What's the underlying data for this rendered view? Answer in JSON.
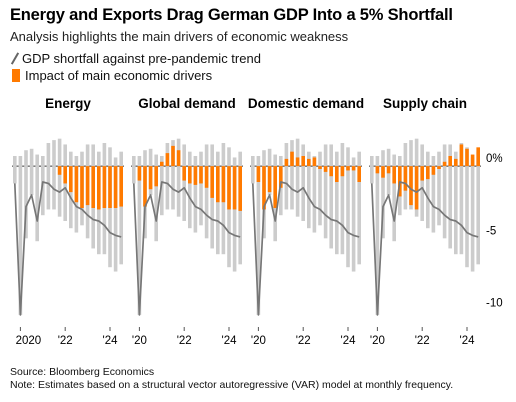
{
  "header": {
    "title": "Energy and Exports Drag German GDP Into a 5% Shortfall",
    "subtitle": "Analysis highlights the main drivers of economic weakness"
  },
  "legend": {
    "line_label": "GDP shortfall against pre-pandemic trend",
    "bar_label": "Impact of main economic drivers"
  },
  "footer": {
    "source": "Source: Bloomberg Economics",
    "note": "Note: Estimates based on a structural vector autoregressive (VAR) model at monthly frequency."
  },
  "colors": {
    "driver": "#ff7a00",
    "other": "#cccccc",
    "line": "#777777",
    "zero": "#333333"
  },
  "chart_data": {
    "type": "bar",
    "ylim": [
      -11,
      2.5
    ],
    "y_ticks": [
      {
        "value": 0,
        "label": "0%"
      },
      {
        "value": -5,
        "label": "-5"
      },
      {
        "value": -10,
        "label": "-10"
      }
    ],
    "x_ticks": [
      "2020",
      "'22",
      "'24"
    ],
    "panel_x_ticks": [
      "'20",
      "'22",
      "'24"
    ],
    "x": [
      "2019-12",
      "2020-03",
      "2020-06",
      "2020-09",
      "2020-12",
      "2021-03",
      "2021-06",
      "2021-09",
      "2021-12",
      "2022-03",
      "2022-06",
      "2022-09",
      "2022-12",
      "2023-03",
      "2023-06",
      "2023-09",
      "2023-12",
      "2024-03",
      "2024-06",
      "2024-09"
    ],
    "gdp_shortfall": [
      -1.2,
      -10.3,
      -2.8,
      -2.0,
      -3.8,
      -1.1,
      -1.2,
      -1.6,
      -1.8,
      -1.5,
      -2.2,
      -2.8,
      -3.0,
      -3.4,
      -3.7,
      -3.8,
      -4.1,
      -4.6,
      -4.8,
      -4.9
    ],
    "total_bars": [
      [
        0.7,
        -1.2
      ],
      [
        0.7,
        -10.3
      ],
      [
        1.1,
        -5.0
      ],
      [
        1.2,
        -2.0
      ],
      [
        0.8,
        -5.2
      ],
      [
        0.7,
        -3.4
      ],
      [
        1.6,
        -3.0
      ],
      [
        1.8,
        -3.0
      ],
      [
        1.9,
        -3.5
      ],
      [
        1.5,
        -3.8
      ],
      [
        1.0,
        -4.3
      ],
      [
        0.7,
        -4.6
      ],
      [
        1.0,
        -4.1
      ],
      [
        1.5,
        -5.0
      ],
      [
        1.5,
        -5.7
      ],
      [
        1.0,
        -6.1
      ],
      [
        1.6,
        -6.1
      ],
      [
        1.3,
        -7.0
      ],
      [
        0.6,
        -7.3
      ],
      [
        1.0,
        -6.8
      ]
    ],
    "panels": [
      {
        "name": "Energy",
        "values": [
          0,
          0,
          0,
          0,
          0,
          0,
          0,
          0,
          -0.6,
          -1.2,
          -1.8,
          -2.5,
          -2.9,
          -2.7,
          -2.9,
          -3.0,
          -2.9,
          -2.9,
          -2.9,
          -2.8
        ]
      },
      {
        "name": "Global demand",
        "values": [
          0,
          -1.0,
          -2.8,
          -1.6,
          -1.4,
          0.3,
          0.9,
          1.4,
          1.1,
          -1.0,
          -1.2,
          -1.3,
          -1.2,
          -1.5,
          -2.2,
          -2.5,
          -2.5,
          -3.0,
          -3.0,
          -3.1
        ]
      },
      {
        "name": "Domestic demand",
        "values": [
          0,
          -1.1,
          -3.0,
          -1.8,
          -2.9,
          -1.5,
          0.5,
          1.0,
          0.6,
          0.7,
          0.5,
          0.6,
          -0.2,
          -0.4,
          -0.7,
          -1.1,
          -0.7,
          -0.3,
          -0.3,
          -1.1
        ]
      },
      {
        "name": "Supply chain",
        "values": [
          0,
          -0.5,
          -0.8,
          -0.5,
          -1.2,
          -2.1,
          -1.7,
          -2.7,
          -3.0,
          -1.0,
          -0.9,
          -0.6,
          -0.2,
          0.3,
          0.7,
          0.5,
          1.5,
          1.2,
          0.8,
          1.3
        ]
      }
    ]
  }
}
